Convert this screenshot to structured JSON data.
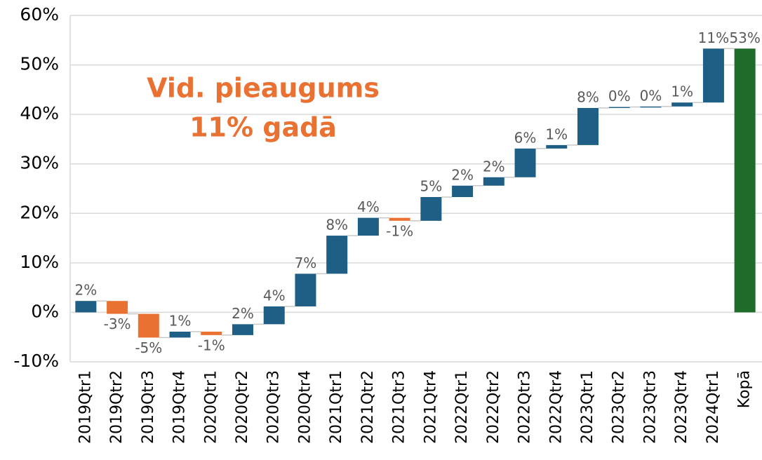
{
  "chart_data": {
    "type": "waterfall",
    "categories": [
      "2019Qtr1",
      "2019Qtr2",
      "2019Qtr3",
      "2019Qtr4",
      "2020Qtr1",
      "2020Qtr2",
      "2020Qtr3",
      "2020Qtr4",
      "2021Qtr1",
      "2021Qtr2",
      "2021Qtr3",
      "2021Qtr4",
      "2022Qtr1",
      "2022Qtr2",
      "2022Qtr3",
      "2022Qtr4",
      "2023Qtr1",
      "2023Qtr2",
      "2023Qtr3",
      "2023Qtr4",
      "2024Qtr1",
      "Kopā"
    ],
    "values": [
      2.3,
      -2.6,
      -4.8,
      1.2,
      -0.7,
      2.2,
      3.6,
      6.6,
      7.7,
      3.6,
      -0.6,
      4.8,
      2.3,
      1.7,
      5.8,
      0.7,
      7.5,
      0.2,
      0.1,
      0.8,
      10.9,
      53.3
    ],
    "value_labels": [
      "2%",
      "-3%",
      "-5%",
      "1%",
      "-1%",
      "2%",
      "4%",
      "7%",
      "8%",
      "4%",
      "-1%",
      "5%",
      "2%",
      "2%",
      "6%",
      "1%",
      "8%",
      "0%",
      "0%",
      "1%",
      "11%",
      "53%"
    ],
    "is_total": [
      false,
      false,
      false,
      false,
      false,
      false,
      false,
      false,
      false,
      false,
      false,
      false,
      false,
      false,
      false,
      false,
      false,
      false,
      false,
      false,
      false,
      true
    ],
    "colors": {
      "increase": "#1f5f86",
      "decrease": "#e97132",
      "total": "#1e6b2a"
    },
    "ylim": [
      -10,
      60
    ],
    "yticks": [
      {
        "value": -10,
        "label": "-10%"
      },
      {
        "value": 0,
        "label": "0%"
      },
      {
        "value": 10,
        "label": "10%"
      },
      {
        "value": 20,
        "label": "20%"
      },
      {
        "value": 30,
        "label": "30%"
      },
      {
        "value": 40,
        "label": "40%"
      },
      {
        "value": 50,
        "label": "50%"
      },
      {
        "value": 60,
        "label": "60%"
      }
    ],
    "grid": true,
    "annotations": [
      "Vid. pieaugums",
      "11% gadā"
    ],
    "annotation_color": "#e97132"
  }
}
